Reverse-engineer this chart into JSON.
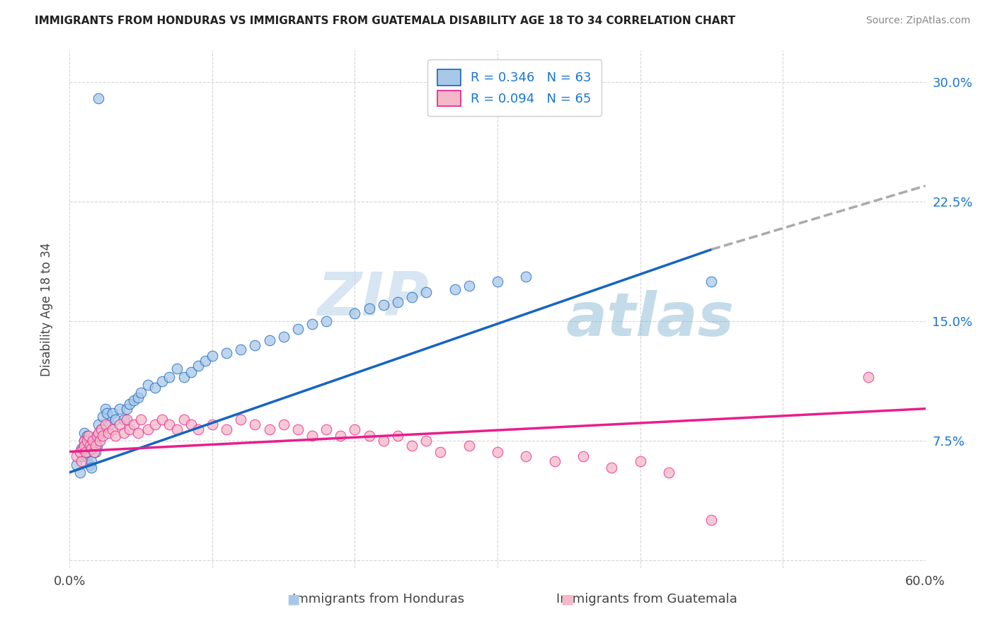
{
  "title": "IMMIGRANTS FROM HONDURAS VS IMMIGRANTS FROM GUATEMALA DISABILITY AGE 18 TO 34 CORRELATION CHART",
  "source": "Source: ZipAtlas.com",
  "ylabel": "Disability Age 18 to 34",
  "x_label_blue": "Immigrants from Honduras",
  "x_label_pink": "Immigrants from Guatemala",
  "legend_blue_R": "0.346",
  "legend_blue_N": "63",
  "legend_pink_R": "0.094",
  "legend_pink_N": "65",
  "xlim": [
    0.0,
    0.6
  ],
  "ylim": [
    -0.005,
    0.32
  ],
  "yticks": [
    0.0,
    0.075,
    0.15,
    0.225,
    0.3
  ],
  "ytick_labels": [
    "",
    "7.5%",
    "15.0%",
    "22.5%",
    "30.0%"
  ],
  "xticks": [
    0.0,
    0.1,
    0.2,
    0.3,
    0.4,
    0.5,
    0.6
  ],
  "xtick_labels": [
    "0.0%",
    "",
    "",
    "",
    "",
    "",
    "60.0%"
  ],
  "color_blue": "#a8c8e8",
  "color_pink": "#f4b8c8",
  "color_blue_line": "#1565C0",
  "color_pink_line": "#E91E8C",
  "color_blue_label": "#1976D2",
  "watermark_zip": "ZIP",
  "watermark_atlas": "atlas",
  "background_color": "#ffffff",
  "grid_color": "#cccccc",
  "blue_x": [
    0.005,
    0.007,
    0.008,
    0.009,
    0.01,
    0.01,
    0.011,
    0.012,
    0.012,
    0.013,
    0.014,
    0.015,
    0.015,
    0.016,
    0.017,
    0.018,
    0.019,
    0.02,
    0.02,
    0.021,
    0.022,
    0.023,
    0.025,
    0.026,
    0.028,
    0.03,
    0.032,
    0.035,
    0.038,
    0.04,
    0.042,
    0.045,
    0.048,
    0.05,
    0.055,
    0.06,
    0.065,
    0.07,
    0.075,
    0.08,
    0.085,
    0.09,
    0.095,
    0.1,
    0.11,
    0.12,
    0.13,
    0.14,
    0.15,
    0.16,
    0.17,
    0.18,
    0.2,
    0.21,
    0.22,
    0.23,
    0.24,
    0.25,
    0.27,
    0.28,
    0.3,
    0.32,
    0.45
  ],
  "blue_y": [
    0.06,
    0.055,
    0.07,
    0.065,
    0.075,
    0.08,
    0.072,
    0.078,
    0.065,
    0.068,
    0.06,
    0.062,
    0.058,
    0.07,
    0.075,
    0.068,
    0.072,
    0.078,
    0.085,
    0.08,
    0.082,
    0.09,
    0.095,
    0.092,
    0.085,
    0.092,
    0.088,
    0.095,
    0.088,
    0.095,
    0.098,
    0.1,
    0.102,
    0.105,
    0.11,
    0.108,
    0.112,
    0.115,
    0.12,
    0.115,
    0.118,
    0.122,
    0.125,
    0.128,
    0.13,
    0.132,
    0.135,
    0.138,
    0.14,
    0.145,
    0.148,
    0.15,
    0.155,
    0.158,
    0.16,
    0.162,
    0.165,
    0.168,
    0.17,
    0.172,
    0.175,
    0.178,
    0.175
  ],
  "blue_outlier_x": [
    0.02
  ],
  "blue_outlier_y": [
    0.29
  ],
  "pink_x": [
    0.005,
    0.007,
    0.008,
    0.009,
    0.01,
    0.01,
    0.011,
    0.012,
    0.013,
    0.014,
    0.015,
    0.016,
    0.017,
    0.018,
    0.019,
    0.02,
    0.021,
    0.022,
    0.023,
    0.025,
    0.027,
    0.03,
    0.032,
    0.035,
    0.038,
    0.04,
    0.042,
    0.045,
    0.048,
    0.05,
    0.055,
    0.06,
    0.065,
    0.07,
    0.075,
    0.08,
    0.085,
    0.09,
    0.1,
    0.11,
    0.12,
    0.13,
    0.14,
    0.15,
    0.16,
    0.17,
    0.18,
    0.19,
    0.2,
    0.21,
    0.22,
    0.23,
    0.24,
    0.25,
    0.26,
    0.28,
    0.3,
    0.32,
    0.34,
    0.36,
    0.38,
    0.4,
    0.42,
    0.45,
    0.56
  ],
  "pink_y": [
    0.065,
    0.068,
    0.062,
    0.07,
    0.075,
    0.072,
    0.068,
    0.075,
    0.078,
    0.072,
    0.07,
    0.075,
    0.068,
    0.072,
    0.078,
    0.08,
    0.075,
    0.082,
    0.078,
    0.085,
    0.08,
    0.082,
    0.078,
    0.085,
    0.08,
    0.088,
    0.082,
    0.085,
    0.08,
    0.088,
    0.082,
    0.085,
    0.088,
    0.085,
    0.082,
    0.088,
    0.085,
    0.082,
    0.085,
    0.082,
    0.088,
    0.085,
    0.082,
    0.085,
    0.082,
    0.078,
    0.082,
    0.078,
    0.082,
    0.078,
    0.075,
    0.078,
    0.072,
    0.075,
    0.068,
    0.072,
    0.068,
    0.065,
    0.062,
    0.065,
    0.058,
    0.062,
    0.055,
    0.025,
    0.115
  ],
  "blue_trend_x0": 0.0,
  "blue_trend_x1": 0.45,
  "blue_trend_xdash": 0.6,
  "blue_trend_y0": 0.055,
  "blue_trend_y1": 0.195,
  "blue_trend_ydash": 0.235,
  "pink_trend_x0": 0.0,
  "pink_trend_x1": 0.6,
  "pink_trend_y0": 0.068,
  "pink_trend_y1": 0.095
}
